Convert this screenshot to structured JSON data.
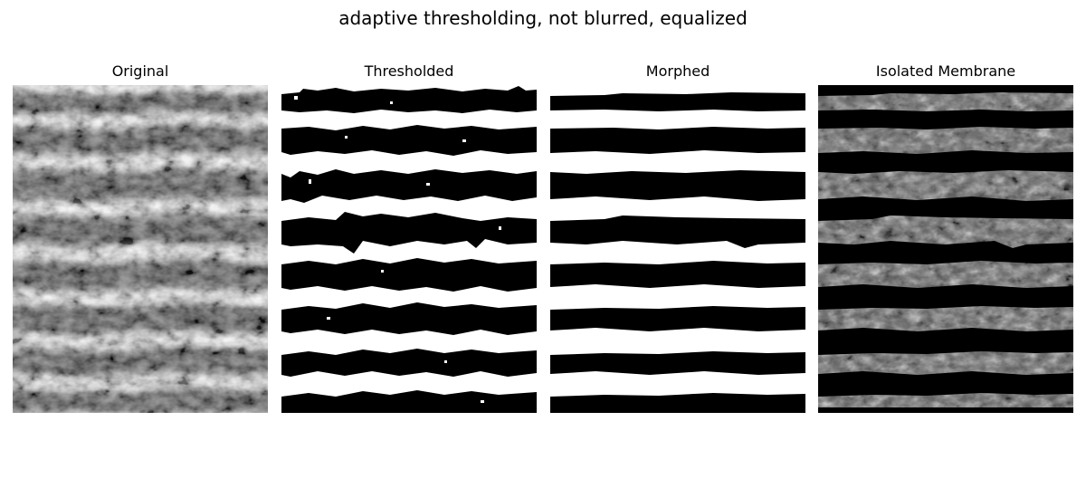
{
  "figure": {
    "title": "adaptive thresholding, not blurred, equalized"
  },
  "panels": [
    {
      "title": "Original"
    },
    {
      "title": "Thresholded"
    },
    {
      "title": "Morphed"
    },
    {
      "title": "Isolated Membrane"
    }
  ],
  "colors": {
    "background": "#ffffff",
    "membrane": "#000000",
    "gap": "#ffffff",
    "texture_light": "#bdbdbd",
    "texture_mid": "#7a7a7a"
  },
  "membrane_band_count": 8
}
